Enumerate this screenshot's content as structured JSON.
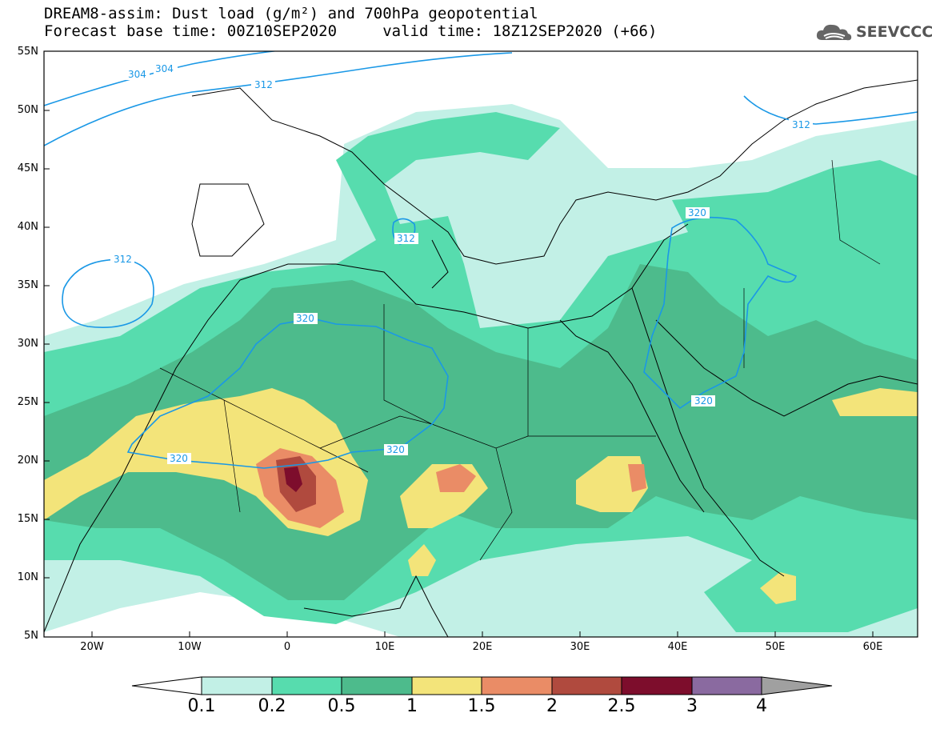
{
  "title": {
    "line1": "DREAM8-assim: Dust load (g/m²) and 700hPa geopotential",
    "line2": "Forecast base time: 00Z10SEP2020     valid time: 18Z12SEP2020 (+66)"
  },
  "logo": {
    "text": "SEEVCCC",
    "icon": "cloud-icon"
  },
  "lat_labels": [
    "55N",
    "50N",
    "45N",
    "40N",
    "35N",
    "30N",
    "25N",
    "20N",
    "15N",
    "10N",
    "5N"
  ],
  "lon_labels": [
    "20W",
    "10W",
    "0",
    "10E",
    "20E",
    "30E",
    "40E",
    "50E",
    "60E"
  ],
  "contour_labels": [
    "304",
    "304",
    "312",
    "312",
    "312",
    "312",
    "320",
    "320",
    "320",
    "320",
    "320"
  ],
  "colorbar": {
    "ticks": [
      "0.1",
      "0.2",
      "0.5",
      "1",
      "1.5",
      "2",
      "2.5",
      "3",
      "4"
    ],
    "colors": [
      "#ffffff",
      "#c2f0e6",
      "#57dcae",
      "#4dbb8c",
      "#f3e47a",
      "#ea8c66",
      "#b04a3e",
      "#7d0d2c",
      "#8a6aa0",
      "#a0a0a0"
    ]
  },
  "colors": {
    "contour": "#1a98e6",
    "ocean": "#ffffff"
  }
}
